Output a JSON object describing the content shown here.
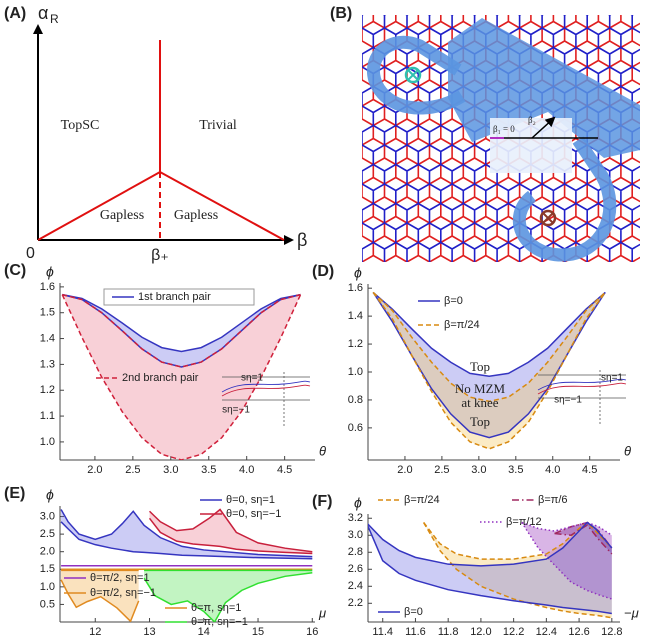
{
  "chart_data": [
    {
      "type": "phase",
      "label": "(A)",
      "ylabel": "α",
      "ylabel_sub": "R",
      "xlabel": "β",
      "origin": "0",
      "xmark": "β₊",
      "regions": [
        "TopSC",
        "Trivial",
        "Gapless",
        "Gapless"
      ],
      "color": "#e01010"
    },
    {
      "type": "lattice",
      "label": "(B)",
      "annotations": [
        "β₁ = 0",
        "β₂"
      ]
    },
    {
      "type": "line",
      "label": "(C)",
      "ylabel": "ϕ",
      "xlabel": "θ",
      "xlim": [
        1.54,
        4.9
      ],
      "ylim": [
        0.93,
        1.615
      ],
      "xticks": [
        {
          "value": 2,
          "label": "2.0"
        },
        2.5,
        {
          "value": 3,
          "label": "3.0"
        },
        3.5,
        {
          "value": 4,
          "label": "4.0"
        },
        4.5
      ],
      "yticks": [
        {
          "value": 1,
          "label": "1.0"
        },
        1.1,
        1.2,
        1.3,
        1.4,
        1.5,
        1.6
      ],
      "x": [
        1.57,
        1.83,
        2.09,
        2.36,
        2.62,
        2.88,
        3.14,
        3.4,
        3.67,
        3.93,
        4.19,
        4.45,
        4.71
      ],
      "series": [
        {
          "name": "1st branch pair",
          "color": "#3535c0",
          "fill": "rgba(110,110,225,0.35)",
          "values": [
            1.57,
            1.555,
            1.515,
            1.46,
            1.405,
            1.365,
            1.35,
            1.365,
            1.405,
            1.46,
            1.515,
            1.555,
            1.57
          ],
          "lower": [
            1.57,
            1.551,
            1.5,
            1.43,
            1.36,
            1.309,
            1.29,
            1.309,
            1.36,
            1.43,
            1.5,
            1.551,
            1.57
          ]
        },
        {
          "name": "2nd branch pair",
          "color": "#d0203a",
          "dash": "dashed",
          "fill": "rgba(235,120,140,0.35)",
          "values": [
            1.57,
            1.551,
            1.5,
            1.43,
            1.36,
            1.309,
            1.29,
            1.309,
            1.36,
            1.43,
            1.5,
            1.551,
            1.57
          ],
          "lower": [
            1.57,
            1.404,
            1.25,
            1.117,
            1.016,
            0.952,
            0.93,
            0.952,
            1.016,
            1.117,
            1.25,
            1.404,
            1.57
          ]
        }
      ],
      "inset_labels": [
        "sη=1",
        "sη=−1"
      ]
    },
    {
      "type": "line",
      "label": "(D)",
      "ylabel": "ϕ",
      "xlabel": "θ",
      "xlim": [
        1.5,
        4.91
      ],
      "ylim": [
        0.37,
        1.63
      ],
      "xticks": [
        {
          "value": 2,
          "label": "2.0"
        },
        2.5,
        {
          "value": 3,
          "label": "3.0"
        },
        3.5,
        {
          "value": 4,
          "label": "4.0"
        },
        4.5
      ],
      "yticks": [
        0.6,
        0.8,
        {
          "value": 1,
          "label": "1.0"
        },
        1.2,
        1.4,
        1.6
      ],
      "x": [
        1.57,
        1.83,
        2.09,
        2.36,
        2.62,
        2.88,
        3.14,
        3.4,
        3.67,
        3.93,
        4.19,
        4.45,
        4.71
      ],
      "series": [
        {
          "name": "β=0",
          "color": "#3535c0",
          "fill": "rgba(110,110,225,0.35)",
          "values": [
            1.57,
            1.45,
            1.31,
            1.17,
            1.07,
            0.99,
            0.97,
            0.99,
            1.07,
            1.17,
            1.31,
            1.45,
            1.57
          ],
          "lower": [
            1.57,
            1.36,
            1.12,
            0.88,
            0.7,
            0.57,
            0.53,
            0.57,
            0.7,
            0.88,
            1.12,
            1.36,
            1.57
          ]
        },
        {
          "name": "β=π/24",
          "color": "#d88a10",
          "dash": "dashed",
          "fill": "rgba(245,205,110,0.4)",
          "values": [
            1.57,
            1.44,
            1.25,
            1.07,
            0.92,
            0.82,
            0.79,
            0.82,
            0.92,
            1.07,
            1.25,
            1.44,
            1.57
          ],
          "lower": [
            1.57,
            1.38,
            1.12,
            0.86,
            0.64,
            0.5,
            0.45,
            0.5,
            0.64,
            0.86,
            1.12,
            1.38,
            1.57
          ]
        }
      ],
      "annotations": [
        "Top",
        "No MZM",
        "at knee",
        "Top"
      ],
      "inset_labels": [
        "sη=1",
        "sη=−1"
      ]
    },
    {
      "type": "line",
      "label": "(E)",
      "ylabel": "ϕ",
      "xlabel": "μ",
      "xlim": [
        11.35,
        16.05
      ],
      "ylim": [
        0,
        3.3
      ],
      "xticks": [
        12,
        13,
        14,
        15,
        16
      ],
      "yticks": [
        0.5,
        {
          "value": 1,
          "label": "1.0"
        },
        1.5,
        {
          "value": 2,
          "label": "2.0"
        },
        2.5,
        {
          "value": 3,
          "label": "3.0"
        }
      ],
      "series": [
        {
          "name": "θ=0, sη=1",
          "color": "#3535c0",
          "fill": "rgba(110,110,225,0.35)",
          "x": [
            11.37,
            11.5,
            11.7,
            12.0,
            12.3,
            12.5,
            12.7,
            12.9,
            13.2,
            13.6,
            14.0,
            15.0,
            16.0
          ],
          "values": [
            3.2,
            2.85,
            2.5,
            2.35,
            2.5,
            2.8,
            3.15,
            2.75,
            2.4,
            2.15,
            2.05,
            1.92,
            1.86
          ],
          "lower": [
            2.85,
            2.65,
            2.35,
            2.2,
            2.1,
            2.05,
            2.0,
            1.98,
            1.95,
            1.9,
            1.88,
            1.83,
            1.8
          ]
        },
        {
          "name": "θ=0, sη=−1",
          "color": "#c8203c",
          "fill": "rgba(235,120,140,0.35)",
          "x": [
            13.0,
            13.2,
            13.5,
            13.8,
            14.1,
            14.3,
            14.6,
            15.0,
            15.5,
            16.0
          ],
          "values": [
            3.15,
            2.85,
            2.6,
            2.65,
            2.95,
            3.2,
            2.55,
            2.25,
            2.1,
            2.0
          ],
          "lower": [
            2.95,
            2.55,
            2.3,
            2.22,
            2.18,
            2.15,
            2.07,
            2.02,
            1.98,
            1.95
          ]
        },
        {
          "name": "θ=π/2, sη=1",
          "color": "#9030c0",
          "x": [
            11.37,
            16.0
          ],
          "values": [
            1.6,
            1.6
          ]
        },
        {
          "name": "θ=π/2, sη=−1",
          "color": "#e08a20",
          "x": [
            11.37,
            16.0
          ],
          "values": [
            1.5,
            1.5
          ]
        },
        {
          "name": "θ=π, sη=1",
          "color": "#e08a20",
          "fill": "rgba(245,190,110,0.45)",
          "x": [
            11.37,
            11.5,
            11.65,
            11.85,
            12.1,
            12.4,
            12.65,
            12.8
          ],
          "values": [
            1.47,
            1.47,
            1.47,
            1.47,
            1.47,
            1.47,
            1.47,
            1.47
          ],
          "lower": [
            1.2,
            0.8,
            0.42,
            0.58,
            0.72,
            0.4,
            0.02,
            0.6
          ]
        },
        {
          "name": "θ=π, sη=−1",
          "color": "#30e030",
          "fill": "rgba(120,230,120,0.45)",
          "x": [
            12.9,
            13.1,
            13.4,
            13.7,
            14.0,
            14.2,
            14.4,
            14.7,
            15.0,
            15.5,
            16.0
          ],
          "values": [
            1.47,
            1.47,
            1.47,
            1.47,
            1.47,
            1.47,
            1.47,
            1.47,
            1.47,
            1.47,
            1.47
          ],
          "lower": [
            1.25,
            0.75,
            0.5,
            0.6,
            0.3,
            0.0,
            0.55,
            0.9,
            1.1,
            1.3,
            1.4
          ]
        }
      ]
    },
    {
      "type": "line",
      "label": "(F)",
      "ylabel": "ϕ",
      "xlabel": "−μ",
      "xlim": [
        11.31,
        12.85
      ],
      "ylim": [
        1.98,
        3.25
      ],
      "xticks": [
        11.4,
        11.6,
        11.8,
        {
          "value": 12,
          "label": "12.0"
        },
        12.2,
        12.4,
        12.6,
        12.8
      ],
      "yticks": [
        2.2,
        2.4,
        2.6,
        2.8,
        {
          "value": 3,
          "label": "3.0"
        },
        3.2
      ],
      "series": [
        {
          "name": "β=π/24",
          "color": "#d88a10",
          "dash": "dashed",
          "fill": "rgba(245,205,110,0.4)",
          "x": [
            11.65,
            11.75,
            11.85,
            12.0,
            12.2,
            12.4,
            12.5,
            12.6,
            12.65,
            12.7,
            12.8
          ],
          "values": [
            3.15,
            2.9,
            2.78,
            2.72,
            2.72,
            2.78,
            2.9,
            3.08,
            3.15,
            3.05,
            2.85
          ],
          "lower": [
            3.15,
            2.82,
            2.6,
            2.4,
            2.25,
            2.15,
            2.11,
            2.08,
            2.07,
            2.06,
            2.03
          ]
        },
        {
          "name": "β=π/6",
          "color": "#a02860",
          "dash": "dashdot",
          "fill": "rgba(120,40,120,0.45)",
          "x": [
            12.45,
            12.55,
            12.65,
            12.72,
            12.8
          ],
          "values": [
            3.02,
            3.1,
            3.15,
            3.05,
            2.85
          ],
          "lower": [
            3.02,
            3.0,
            3.12,
            2.95,
            2.78
          ]
        },
        {
          "name": "β=π/12",
          "color": "#9030c0",
          "dash": "dotted",
          "fill": "rgba(170,90,200,0.45)",
          "x": [
            12.25,
            12.35,
            12.45,
            12.55,
            12.65,
            12.72,
            12.8
          ],
          "values": [
            3.15,
            3.08,
            3.05,
            3.1,
            3.15,
            3.1,
            3.0
          ],
          "lower": [
            3.15,
            2.85,
            2.65,
            2.45,
            2.35,
            2.3,
            2.25
          ]
        },
        {
          "name": "β=0",
          "color": "#3535c0",
          "fill": "rgba(110,110,225,0.35)",
          "x": [
            11.3,
            11.4,
            11.5,
            11.6,
            11.8,
            12.0,
            12.2,
            12.4,
            12.5,
            12.6,
            12.65,
            12.7,
            12.8
          ],
          "values": [
            3.15,
            2.95,
            2.82,
            2.74,
            2.66,
            2.64,
            2.66,
            2.72,
            2.85,
            3.05,
            3.15,
            3.08,
            2.85
          ],
          "lower": [
            3.15,
            2.7,
            2.55,
            2.47,
            2.36,
            2.29,
            2.23,
            2.18,
            2.15,
            2.13,
            2.12,
            2.11,
            2.08
          ]
        }
      ]
    }
  ]
}
